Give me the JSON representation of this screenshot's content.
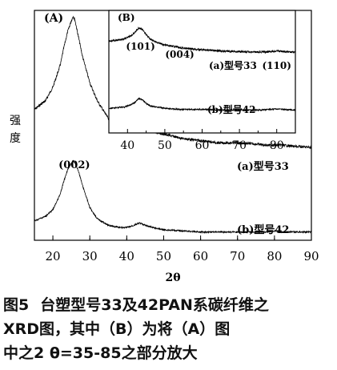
{
  "chart_data": [
    {
      "type": "line",
      "panel_label": "(A)",
      "xlabel": "2θ",
      "ylabel": "强度",
      "xlim": [
        15,
        90
      ],
      "x_ticks": [
        20,
        30,
        40,
        50,
        60,
        70,
        80,
        90
      ],
      "grid": false,
      "series": [
        {
          "name": "(a)型号33",
          "x": [
            15,
            18,
            20,
            22,
            23,
            24,
            25,
            25.5,
            26,
            27,
            28,
            30,
            32,
            35,
            38,
            40,
            42,
            43.5,
            45,
            47,
            50,
            55,
            60,
            65,
            70,
            75,
            78,
            80,
            82,
            85,
            90
          ],
          "y": [
            0.58,
            0.62,
            0.68,
            0.78,
            0.86,
            0.93,
            0.98,
            1.0,
            0.98,
            0.9,
            0.82,
            0.7,
            0.62,
            0.54,
            0.5,
            0.49,
            0.5,
            0.52,
            0.5,
            0.48,
            0.47,
            0.45,
            0.44,
            0.43,
            0.43,
            0.425,
            0.42,
            0.42,
            0.42,
            0.415,
            0.41
          ]
        },
        {
          "name": "(b)型号42",
          "x": [
            15,
            18,
            20,
            22,
            23,
            24,
            25,
            25.5,
            26,
            27,
            28,
            30,
            32,
            35,
            38,
            40,
            42,
            43.5,
            45,
            47,
            50,
            55,
            60,
            65,
            70,
            75,
            78,
            80,
            82,
            85,
            90
          ],
          "y": [
            0.08,
            0.1,
            0.13,
            0.2,
            0.26,
            0.31,
            0.34,
            0.35,
            0.34,
            0.3,
            0.24,
            0.14,
            0.09,
            0.06,
            0.05,
            0.05,
            0.06,
            0.07,
            0.06,
            0.05,
            0.04,
            0.035,
            0.03,
            0.03,
            0.03,
            0.03,
            0.03,
            0.035,
            0.03,
            0.03,
            0.03
          ]
        }
      ],
      "annotations": [
        {
          "text": "(002)",
          "x": 25.8
        }
      ]
    },
    {
      "type": "line",
      "panel_label": "(B)",
      "xlim": [
        35,
        85
      ],
      "x_ticks": [
        40,
        50,
        60,
        70,
        80
      ],
      "grid": false,
      "series": [
        {
          "name": "(a)型号33",
          "x": [
            35,
            37,
            39,
            41,
            42,
            43,
            44,
            45,
            46,
            48,
            50,
            52,
            54,
            56,
            60,
            65,
            70,
            75,
            78,
            80,
            82,
            85
          ],
          "y": [
            0.74,
            0.75,
            0.76,
            0.79,
            0.82,
            0.85,
            0.84,
            0.8,
            0.76,
            0.73,
            0.71,
            0.7,
            0.69,
            0.68,
            0.67,
            0.66,
            0.655,
            0.65,
            0.655,
            0.66,
            0.655,
            0.65
          ]
        },
        {
          "name": "(b)型号42",
          "x": [
            35,
            37,
            39,
            41,
            42,
            43,
            44,
            45,
            46,
            48,
            50,
            52,
            54,
            56,
            60,
            65,
            70,
            75,
            78,
            80,
            82,
            85
          ],
          "y": [
            0.18,
            0.185,
            0.19,
            0.21,
            0.23,
            0.26,
            0.25,
            0.22,
            0.2,
            0.19,
            0.18,
            0.175,
            0.17,
            0.17,
            0.17,
            0.165,
            0.165,
            0.165,
            0.17,
            0.175,
            0.17,
            0.165
          ]
        }
      ],
      "annotations": [
        {
          "text": "(101)",
          "x": 43.5
        },
        {
          "text": "(004)",
          "x": 54
        },
        {
          "text": "(110)",
          "x": 80
        }
      ]
    }
  ],
  "caption": {
    "figure_label": "图5",
    "lines": [
      "台塑型号33及42PAN系碳纤维之",
      "XRD图，其中（B）为将（A）图",
      "中之2 θ=35-85之部分放大"
    ]
  }
}
